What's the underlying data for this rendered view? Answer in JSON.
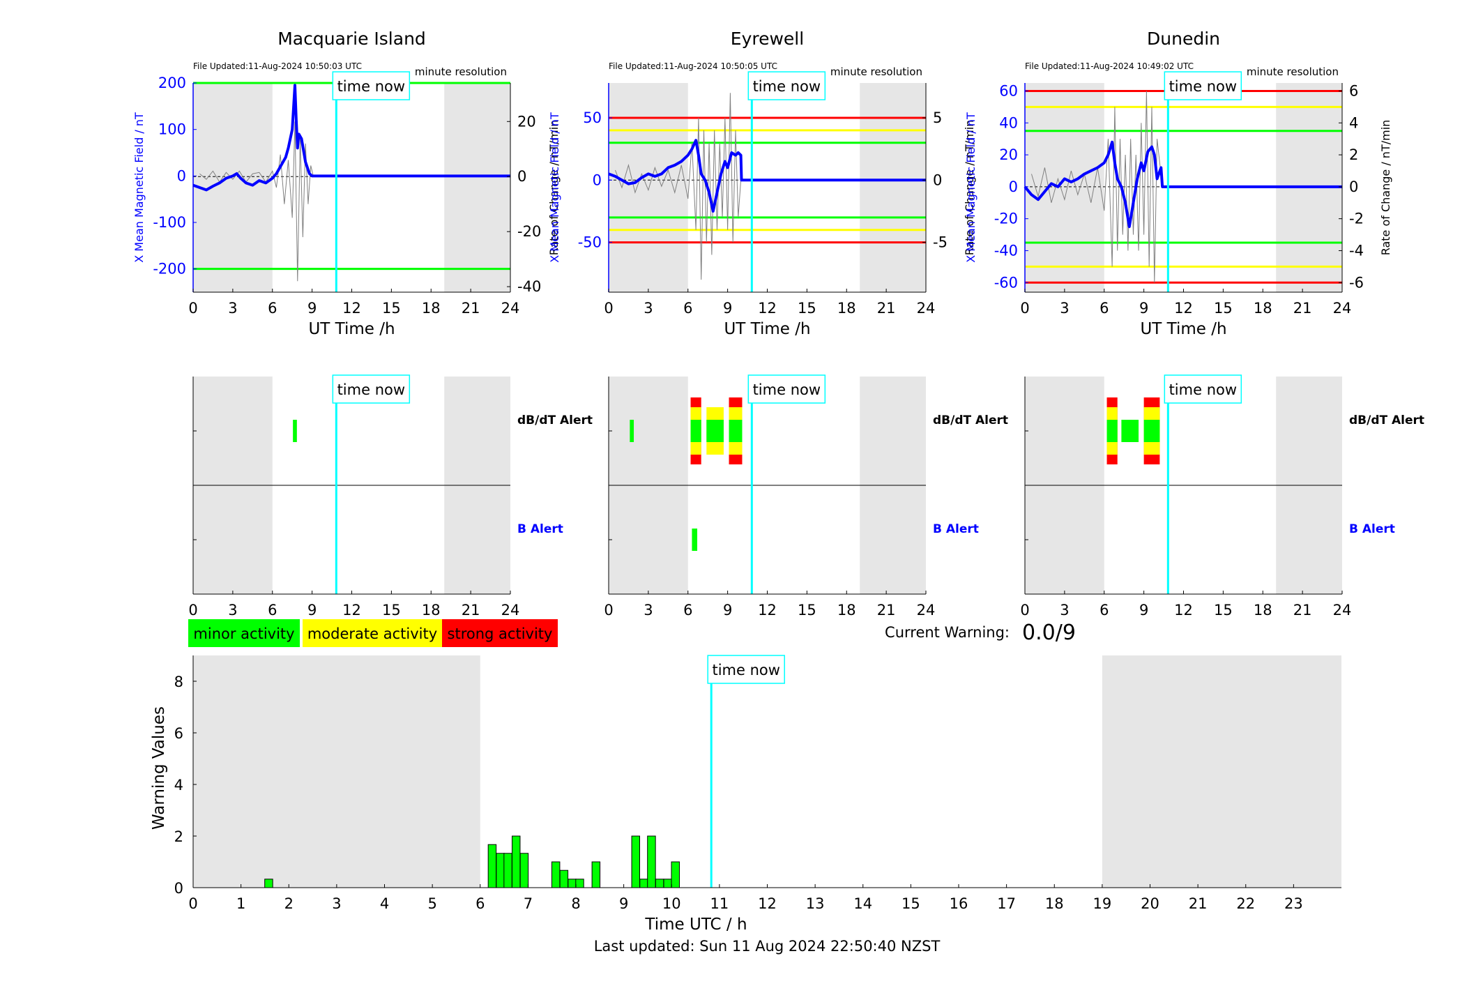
{
  "colors": {
    "minor": "#00ff00",
    "moderate": "#ffff00",
    "strong": "#ff0000",
    "time_now": "#00ffff",
    "b_field": "#0000ff",
    "night_shade": "#e6e6e6",
    "rate_trace": "#808080",
    "axis_blue": "#0000ff"
  },
  "page": {
    "current_warning_label": "Current Warning:",
    "current_warning_value": "0.0/9",
    "last_updated": "Last updated: Sun 11 Aug 2024 22:50:40 NZST",
    "time_now_label": "time now",
    "time_now_hour": 10.83
  },
  "legend": {
    "minor": "minor activity",
    "moderate": "moderate activity",
    "strong": "strong activity"
  },
  "alert_labels": {
    "dbdt": "dB/dT Alert",
    "b": "B Alert"
  },
  "chart_data": [
    {
      "type": "line",
      "station": "Macquarie Island",
      "title": "Macquarie Island",
      "file_updated": "File Updated:11-Aug-2024 10:50:03 UTC",
      "resolution": "minute resolution",
      "xlabel": "UT Time /h",
      "ylabel_left": "X Mean Magnetic Field / nT",
      "ylabel_right": "Rate of Change / nT/min",
      "xlim": [
        0,
        24
      ],
      "xticks": [
        0,
        3,
        6,
        9,
        12,
        15,
        18,
        21,
        24
      ],
      "ylim_left": [
        -250,
        200
      ],
      "yticks_left": [
        -200,
        -100,
        0,
        100,
        200
      ],
      "ylim_right": [
        -42,
        34
      ],
      "yticks_right": [
        -40,
        -20,
        0,
        20
      ],
      "night_shade": [
        [
          0,
          6
        ],
        [
          19,
          24
        ]
      ],
      "thresholds": [
        {
          "level": "minor",
          "values": [
            200,
            -200
          ]
        }
      ],
      "b_field_series": {
        "name": "X Mean Magnetic Field",
        "x": [
          0,
          0.5,
          1,
          1.5,
          2,
          2.5,
          3,
          3.3,
          3.6,
          4,
          4.5,
          5,
          5.5,
          6,
          6.3,
          6.6,
          7,
          7.2,
          7.5,
          7.7,
          7.8,
          7.9,
          8.0,
          8.2,
          8.5,
          8.8,
          9.0,
          9.2,
          24
        ],
        "values": [
          -20,
          -25,
          -30,
          -22,
          -15,
          -5,
          0,
          5,
          -5,
          -15,
          -20,
          -10,
          -15,
          -5,
          5,
          20,
          40,
          60,
          100,
          195,
          120,
          60,
          90,
          80,
          30,
          5,
          0,
          0,
          0
        ]
      },
      "rate_series": {
        "name": "Rate of Change",
        "x": [
          0.5,
          1,
          1.5,
          2,
          2.5,
          3,
          3.5,
          4,
          4.5,
          5,
          5.5,
          6,
          6.3,
          6.6,
          6.9,
          7.2,
          7.5,
          7.7,
          7.9,
          8.1,
          8.3,
          8.5,
          8.7,
          8.9,
          9.1
        ],
        "values": [
          1,
          -1,
          2,
          -2,
          1.5,
          -1,
          2,
          -2,
          1,
          1.5,
          -2,
          2,
          -4,
          8,
          -10,
          6,
          -15,
          20,
          -38,
          14,
          -22,
          12,
          -10,
          4,
          0
        ]
      },
      "dbdt_alerts": [
        {
          "start": 7.55,
          "end": 7.85,
          "level": "minor"
        }
      ],
      "b_alerts": []
    },
    {
      "type": "line",
      "station": "Eyrewell",
      "title": "Eyrewell",
      "file_updated": "File Updated:11-Aug-2024 10:50:05 UTC",
      "resolution": "minute resolution",
      "xlabel": "UT Time /h",
      "ylabel_left": "X Mean Magnetic Field / nT",
      "ylabel_right": "Rate of Change / nT/min",
      "xlim": [
        0,
        24
      ],
      "xticks": [
        0,
        3,
        6,
        9,
        12,
        15,
        18,
        21,
        24
      ],
      "ylim_left": [
        -90,
        78
      ],
      "yticks_left": [
        -50,
        0,
        50
      ],
      "ylim_right": [
        -9,
        7.8
      ],
      "yticks_right": [
        -5,
        0,
        5
      ],
      "night_shade": [
        [
          0,
          6
        ],
        [
          19,
          24
        ]
      ],
      "thresholds": [
        {
          "level": "strong",
          "values": [
            50,
            -50
          ]
        },
        {
          "level": "moderate",
          "values": [
            40,
            -40
          ]
        },
        {
          "level": "minor",
          "values": [
            30,
            -30
          ]
        }
      ],
      "b_field_series": {
        "name": "X Mean Magnetic Field",
        "x": [
          0,
          0.5,
          1,
          1.5,
          2,
          2.5,
          3,
          3.5,
          4,
          4.5,
          5,
          5.5,
          6,
          6.3,
          6.6,
          6.8,
          7.0,
          7.3,
          7.6,
          7.9,
          8.2,
          8.5,
          8.8,
          9.0,
          9.3,
          9.6,
          9.8,
          10.0,
          10.05,
          24
        ],
        "values": [
          5,
          3,
          0,
          -3,
          -2,
          2,
          5,
          3,
          5,
          10,
          12,
          15,
          20,
          25,
          32,
          20,
          5,
          0,
          -10,
          -25,
          -10,
          5,
          15,
          10,
          22,
          20,
          22,
          20,
          0,
          0
        ]
      },
      "rate_series": {
        "name": "Rate of Change",
        "x": [
          0.5,
          1,
          1.5,
          2,
          2.5,
          3,
          3.5,
          4,
          4.5,
          5,
          5.5,
          6,
          6.3,
          6.6,
          6.8,
          7.0,
          7.2,
          7.4,
          7.6,
          7.8,
          8.0,
          8.2,
          8.4,
          8.6,
          8.8,
          9.0,
          9.2,
          9.4,
          9.6,
          9.8,
          10.0
        ],
        "values": [
          0.8,
          -0.6,
          1.2,
          -1,
          0.5,
          -0.8,
          1,
          -0.5,
          0.8,
          -1,
          1.2,
          -1.5,
          3,
          -4,
          5,
          -8,
          4,
          -5,
          3,
          -6,
          4,
          -4,
          3,
          -3,
          5,
          -4,
          7,
          -5,
          4,
          -3,
          0
        ]
      },
      "dbdt_alerts": [
        {
          "start": 1.6,
          "end": 1.9,
          "level": "minor"
        },
        {
          "start": 6.2,
          "end": 7.0,
          "level": "strong"
        },
        {
          "start": 7.4,
          "end": 8.7,
          "level": "moderate"
        },
        {
          "start": 9.1,
          "end": 10.1,
          "level": "strong"
        }
      ],
      "b_alerts": [
        {
          "start": 6.3,
          "end": 6.7,
          "level": "minor"
        }
      ]
    },
    {
      "type": "line",
      "station": "Dunedin",
      "title": "Dunedin",
      "file_updated": "File Updated:11-Aug-2024 10:49:02 UTC",
      "resolution": "minute resolution",
      "xlabel": "UT Time /h",
      "ylabel_left": "X Mean Magnetic Field / nT",
      "ylabel_right": "Rate of Change / nT/min",
      "xlim": [
        0,
        24
      ],
      "xticks": [
        0,
        3,
        6,
        9,
        12,
        15,
        18,
        21,
        24
      ],
      "ylim_left": [
        -66,
        65
      ],
      "yticks_left": [
        -60,
        -40,
        -20,
        0,
        20,
        40,
        60
      ],
      "ylim_right": [
        -6.6,
        6.5
      ],
      "yticks_right": [
        -6,
        -4,
        -2,
        0,
        2,
        4,
        6
      ],
      "night_shade": [
        [
          0,
          6
        ],
        [
          19,
          24
        ]
      ],
      "thresholds": [
        {
          "level": "strong",
          "values": [
            60,
            -60
          ]
        },
        {
          "level": "moderate",
          "values": [
            50,
            -50
          ]
        },
        {
          "level": "minor",
          "values": [
            35,
            -35
          ]
        }
      ],
      "b_field_series": {
        "name": "X Mean Magnetic Field",
        "x": [
          0,
          0.5,
          1,
          1.5,
          2,
          2.5,
          3,
          3.5,
          4,
          4.5,
          5,
          5.5,
          6,
          6.3,
          6.6,
          6.8,
          7.0,
          7.3,
          7.6,
          7.9,
          8.2,
          8.5,
          8.8,
          9.0,
          9.3,
          9.6,
          9.8,
          10.0,
          10.3,
          10.4,
          24
        ],
        "values": [
          0,
          -5,
          -8,
          -3,
          2,
          0,
          5,
          3,
          5,
          8,
          10,
          12,
          15,
          20,
          28,
          15,
          5,
          0,
          -10,
          -25,
          -10,
          5,
          15,
          10,
          22,
          25,
          20,
          5,
          12,
          0,
          0
        ]
      },
      "rate_series": {
        "name": "Rate of Change",
        "x": [
          0.5,
          1,
          1.5,
          2,
          2.5,
          3,
          3.5,
          4,
          4.5,
          5,
          5.5,
          6,
          6.3,
          6.6,
          6.8,
          7.0,
          7.2,
          7.4,
          7.6,
          7.8,
          8.0,
          8.2,
          8.4,
          8.6,
          8.8,
          9.0,
          9.2,
          9.4,
          9.6,
          9.8,
          10.0,
          10.4
        ],
        "values": [
          0.8,
          -0.6,
          1.2,
          -1,
          0.5,
          -0.8,
          1,
          -0.5,
          0.8,
          -1,
          1.2,
          -1.5,
          3,
          -5,
          5,
          -4,
          3,
          -3,
          2,
          -4,
          3,
          -3,
          2,
          -4,
          4,
          -3,
          6,
          -5,
          5,
          -6,
          3,
          0
        ]
      },
      "dbdt_alerts": [
        {
          "start": 6.2,
          "end": 7.0,
          "level": "strong"
        },
        {
          "start": 7.3,
          "end": 8.6,
          "level": "minor"
        },
        {
          "start": 9.0,
          "end": 10.2,
          "level": "strong"
        }
      ],
      "b_alerts": []
    },
    {
      "type": "bar",
      "title": "",
      "xlabel": "Time UTC / h",
      "ylabel": "Warning Values",
      "xlim": [
        0,
        24
      ],
      "xticks": [
        0,
        1,
        2,
        3,
        4,
        5,
        6,
        7,
        8,
        9,
        10,
        11,
        12,
        13,
        14,
        15,
        16,
        17,
        18,
        19,
        20,
        21,
        22,
        23
      ],
      "ylim": [
        0,
        9
      ],
      "yticks": [
        0,
        2,
        4,
        6,
        8
      ],
      "night_shade": [
        [
          0,
          6
        ],
        [
          19,
          24
        ]
      ],
      "bar_width_h": 0.1667,
      "x": [
        1.58,
        6.25,
        6.42,
        6.58,
        6.75,
        6.92,
        7.58,
        7.75,
        7.92,
        8.08,
        8.42,
        9.25,
        9.42,
        9.58,
        9.75,
        9.92,
        10.08
      ],
      "values": [
        0.33,
        1.67,
        1.33,
        1.33,
        2.0,
        1.33,
        1.0,
        0.67,
        0.33,
        0.33,
        1.0,
        2.0,
        0.33,
        2.0,
        0.33,
        0.33,
        1.0
      ]
    }
  ]
}
